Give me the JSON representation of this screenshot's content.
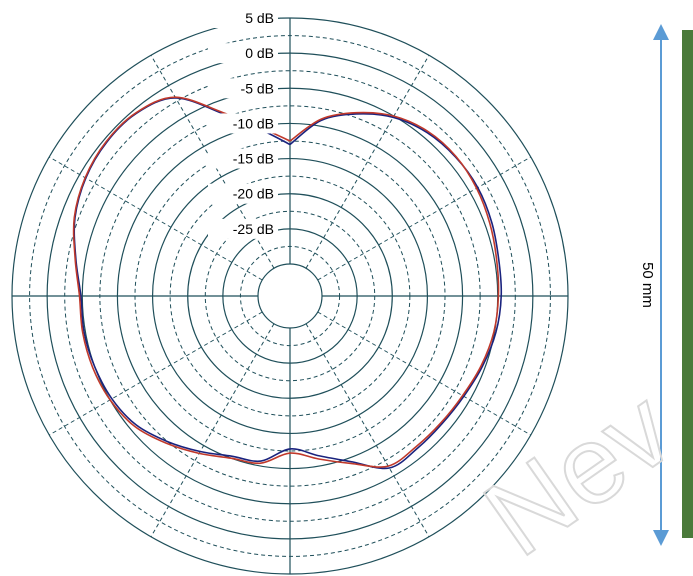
{
  "chart_data": {
    "type": "line",
    "coordinate_system": "polar",
    "title": "",
    "r_range": [
      -30,
      5
    ],
    "r_ticks": [
      5,
      0,
      -5,
      -10,
      -15,
      -20,
      -25
    ],
    "r_tick_labels": [
      "5 dB",
      "0 dB",
      "-5 dB",
      "-10 dB",
      "-15 dB",
      "-20 dB",
      "-25 dB"
    ],
    "grid": true,
    "legend": "none",
    "series": [
      {
        "color": "#1a237e",
        "theta_deg": [
          0,
          10,
          20,
          30,
          40,
          50,
          60,
          70,
          80,
          90,
          100,
          110,
          120,
          130,
          140,
          150,
          160,
          170,
          180,
          190,
          200,
          210,
          220,
          230,
          240,
          250,
          260,
          270,
          280,
          290,
          300,
          310,
          320,
          330,
          340,
          350,
          360
        ],
        "r_db": [
          -13,
          -9.2,
          -7.0,
          -5.2,
          -4.2,
          -3.8,
          -3.7,
          -4.0,
          -4.4,
          -4.5,
          -4.8,
          -5.4,
          -6.0,
          -6.3,
          -6.3,
          -6.3,
          -9.5,
          -11.5,
          -12.8,
          -10.7,
          -10.3,
          -9.0,
          -7.5,
          -6.0,
          -5.3,
          -5.0,
          -4.8,
          -4.8,
          -3.6,
          -2.0,
          -1.0,
          -0.5,
          -0.6,
          -2.0,
          -7.0,
          -10.5,
          -13
        ]
      },
      {
        "color": "#c0392b",
        "theta_deg": [
          0,
          10,
          20,
          30,
          40,
          50,
          60,
          70,
          80,
          90,
          100,
          110,
          120,
          130,
          140,
          150,
          160,
          170,
          180,
          190,
          200,
          210,
          220,
          230,
          240,
          250,
          260,
          270,
          280,
          290,
          300,
          310,
          320,
          330,
          340,
          350,
          360
        ],
        "r_db": [
          -12.5,
          -9.0,
          -6.8,
          -5.0,
          -4.0,
          -3.7,
          -3.9,
          -4.3,
          -4.7,
          -4.9,
          -5.1,
          -5.6,
          -6.2,
          -6.5,
          -6.6,
          -6.6,
          -9.2,
          -11.0,
          -12.2,
          -10.4,
          -10.0,
          -8.7,
          -7.2,
          -5.7,
          -5.0,
          -4.7,
          -4.6,
          -4.6,
          -3.5,
          -1.9,
          -0.9,
          -0.4,
          -0.5,
          -1.9,
          -6.8,
          -10.2,
          -12.5
        ]
      }
    ]
  },
  "dimension": {
    "label": "50 mm",
    "arrow_color": "#5b9bd5",
    "bar_color": "#4a7a3a"
  },
  "watermark": {
    "text": "Nev"
  }
}
